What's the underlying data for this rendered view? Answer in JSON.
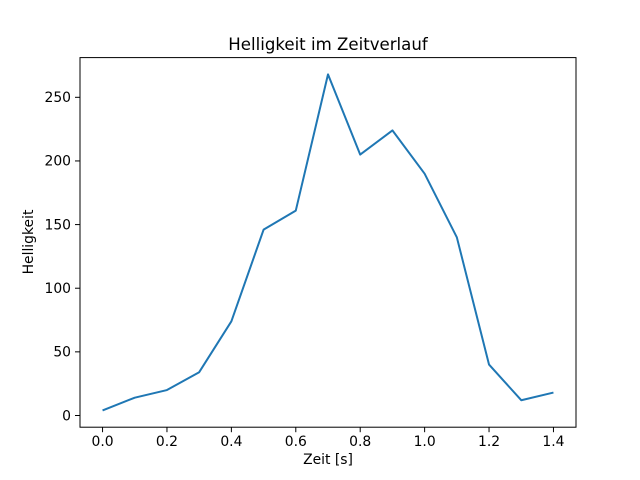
{
  "figure": {
    "background": "#ffffff",
    "text_color": "#000000",
    "spine_color": "#000000"
  },
  "chart_data": {
    "type": "line",
    "title": "Helligkeit im Zeitverlauf",
    "xlabel": "Zeit [s]",
    "ylabel": "Helligkeit",
    "x": [
      0.0,
      0.1,
      0.2,
      0.3,
      0.4,
      0.5,
      0.6,
      0.7,
      0.8,
      0.9,
      1.0,
      1.1,
      1.2,
      1.3,
      1.4
    ],
    "y": [
      4,
      14,
      20,
      34,
      74,
      146,
      161,
      268,
      205,
      224,
      190,
      140,
      40,
      12,
      18
    ],
    "series_name": "Helligkeit",
    "line_color": "#1f77b4",
    "line_width": 2,
    "xlim": [
      -0.07,
      1.47
    ],
    "ylim": [
      -9.2,
      281.2
    ],
    "xticks": {
      "values": [
        0.0,
        0.2,
        0.4,
        0.6,
        0.8,
        1.0,
        1.2,
        1.4
      ],
      "labels": [
        "0.0",
        "0.2",
        "0.4",
        "0.6",
        "0.8",
        "1.0",
        "1.2",
        "1.4"
      ]
    },
    "yticks": {
      "values": [
        0,
        50,
        100,
        150,
        200,
        250
      ],
      "labels": [
        "0",
        "50",
        "100",
        "150",
        "200",
        "250"
      ]
    },
    "grid": false,
    "legend": null
  }
}
